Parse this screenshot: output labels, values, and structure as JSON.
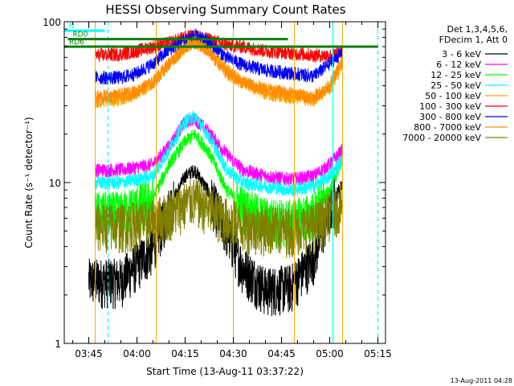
{
  "chart_data": {
    "type": "line",
    "title": "HESSI Observing Summary Count Rates",
    "xlabel": "Start Time (13-Aug-11 03:37:22)",
    "ylabel": "Count Rate (s⁻¹ detector⁻¹)",
    "x_ticks": [
      "03:45",
      "04:00",
      "04:15",
      "04:30",
      "04:45",
      "05:00",
      "05:15"
    ],
    "y_ticks": [
      "1",
      "10",
      "100"
    ],
    "yscale": "log",
    "ylim": [
      1,
      100
    ],
    "xlim": [
      "03:37:22",
      "05:17:22"
    ],
    "legend_header": [
      "Det 1,3,4,5,6,",
      "FDecim 1, Att 0"
    ],
    "legend_placement": "right",
    "series": [
      {
        "name": "3 - 6 keV",
        "color": "#000000",
        "times": [
          "03:45",
          "03:55",
          "04:05",
          "04:10",
          "04:15",
          "04:18",
          "04:22",
          "04:28",
          "04:33",
          "04:40",
          "04:48",
          "04:55",
          "05:00",
          "05:04"
        ],
        "values": [
          2.5,
          2.5,
          4,
          7,
          11,
          12,
          9,
          5,
          3,
          2.2,
          2.3,
          3.5,
          7,
          10
        ]
      },
      {
        "name": "6 - 12 keV",
        "color": "#ff00ff",
        "times": [
          "03:47",
          "03:55",
          "04:05",
          "04:10",
          "04:15",
          "04:18",
          "04:22",
          "04:28",
          "04:33",
          "04:40",
          "04:48",
          "04:55",
          "05:00",
          "05:04"
        ],
        "values": [
          12,
          12,
          13,
          17,
          24,
          25,
          21,
          15,
          12,
          11,
          10.5,
          11,
          13,
          16
        ]
      },
      {
        "name": "12 - 25 keV",
        "color": "#00ff00",
        "times": [
          "03:47",
          "03:55",
          "04:05",
          "04:10",
          "04:15",
          "04:18",
          "04:22",
          "04:28",
          "04:33",
          "04:40",
          "04:48",
          "04:55",
          "05:00",
          "05:04"
        ],
        "values": [
          6.5,
          6.5,
          8,
          13,
          18,
          20,
          16,
          9,
          7,
          6,
          5.8,
          6.5,
          9,
          14
        ]
      },
      {
        "name": "25 - 50 keV",
        "color": "#00ffff",
        "times": [
          "03:47",
          "03:55",
          "04:05",
          "04:10",
          "04:15",
          "04:18",
          "04:22",
          "04:28",
          "04:33",
          "04:40",
          "04:48",
          "04:55",
          "05:00",
          "05:04"
        ],
        "values": [
          10,
          10,
          11,
          16,
          24,
          26,
          20,
          12,
          10,
          9.5,
          9,
          9.5,
          11,
          14
        ]
      },
      {
        "name": "50 - 100 keV",
        "color": "#ffa500",
        "times": [
          "03:47",
          "03:55",
          "04:00",
          "04:05",
          "04:10",
          "04:15",
          "04:18",
          "04:22",
          "04:28",
          "04:33",
          "04:40",
          "04:48",
          "04:55",
          "05:00",
          "05:04"
        ],
        "values": [
          32,
          33,
          36,
          42,
          55,
          70,
          75,
          68,
          50,
          42,
          36,
          34,
          33,
          38,
          55
        ]
      },
      {
        "name": "100 - 300 keV",
        "color": "#ff0000",
        "times": [
          "03:47",
          "03:55",
          "04:00",
          "04:05",
          "04:10",
          "04:15",
          "04:18",
          "04:22",
          "04:28",
          "04:33",
          "04:40",
          "04:48",
          "04:55",
          "05:00",
          "05:04"
        ],
        "values": [
          62,
          63,
          66,
          70,
          74,
          80,
          82,
          78,
          72,
          70,
          66,
          64,
          62,
          62,
          65
        ]
      },
      {
        "name": "300 - 800 keV",
        "color": "#0000ff",
        "times": [
          "03:47",
          "03:55",
          "04:00",
          "04:05",
          "04:10",
          "04:15",
          "04:18",
          "04:22",
          "04:28",
          "04:33",
          "04:40",
          "04:48",
          "04:55",
          "05:00",
          "05:04"
        ],
        "values": [
          45,
          45,
          48,
          55,
          67,
          78,
          82,
          75,
          60,
          54,
          50,
          48,
          46,
          55,
          65
        ]
      },
      {
        "name": "800 - 7000 keV",
        "color": "#ff8c00",
        "times": [
          "03:47",
          "03:55",
          "04:00",
          "04:05",
          "04:10",
          "04:15",
          "04:18",
          "04:22",
          "04:28",
          "04:33",
          "04:40",
          "04:48",
          "04:55",
          "05:00",
          "05:04"
        ],
        "values": [
          34,
          35,
          37,
          42,
          55,
          70,
          75,
          66,
          48,
          42,
          38,
          36,
          34,
          40,
          58
        ]
      },
      {
        "name": "7000 - 20000 keV",
        "color": "#808000",
        "times": [
          "03:47",
          "03:55",
          "04:05",
          "04:10",
          "04:15",
          "04:18",
          "04:22",
          "04:28",
          "04:33",
          "04:40",
          "04:48",
          "04:55",
          "05:00",
          "05:04"
        ],
        "values": [
          5.5,
          5.5,
          5.8,
          6.5,
          7.5,
          8,
          7,
          6,
          5.5,
          5.3,
          5.2,
          5.5,
          6.5,
          7.5
        ]
      }
    ],
    "markers": [
      {
        "label": "N",
        "color": "#00ffff",
        "y": 88,
        "x_start": "03:37:22",
        "x_end": "03:50:00"
      },
      {
        "label": "RD0",
        "color": "#008000",
        "y": 78,
        "x_start": "03:38:30",
        "x_end": "04:47:00"
      },
      {
        "label": "RD6",
        "color": "#008000",
        "y": 70,
        "x_start": "03:37:22",
        "x_end": "05:15:00"
      }
    ],
    "vertical_markers": {
      "cyan_solid": [
        "05:01:00"
      ],
      "cyan_dashed": [
        "03:51:00",
        "05:15:00"
      ],
      "orange_solid": [
        "03:47:00",
        "04:06:00",
        "04:30:00",
        "04:49:00",
        "05:04:00"
      ]
    },
    "grid": false
  },
  "footer_date": "13-Aug-2011 04:28"
}
